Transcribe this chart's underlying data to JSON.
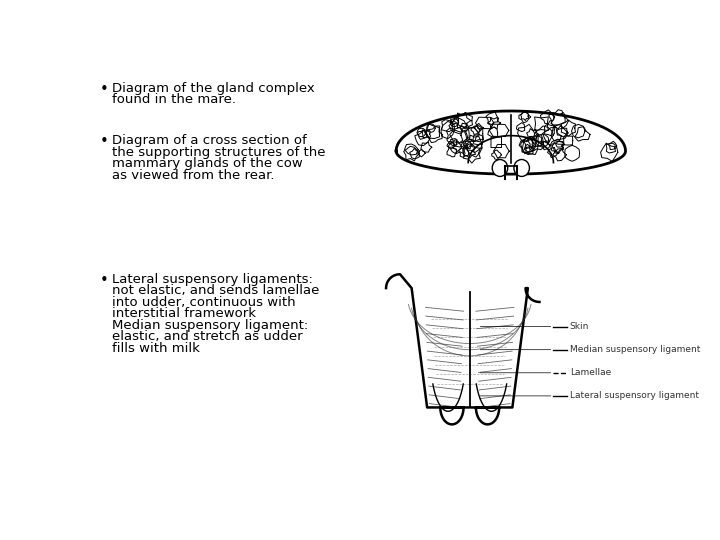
{
  "bg_color": "#ffffff",
  "text_color": "#000000",
  "bullet1_line1": "Diagram of the gland complex",
  "bullet1_line2": "found in the mare.",
  "bullet2_line1": "Diagram of a cross section of",
  "bullet2_line2": "the supporting structures of the",
  "bullet2_line3": "mammary glands of the cow",
  "bullet2_line4": "as viewed from the rear.",
  "bullet3_line1": "Lateral suspensory ligaments:",
  "bullet3_line2": "not elastic, and sends lamellae",
  "bullet3_line3": "into udder, continuous with",
  "bullet3_line4": "interstitial framework",
  "bullet3_line5": "Median suspensory ligament:",
  "bullet3_line6": "elastic, and stretch as udder",
  "bullet3_line7": "fills with milk",
  "legend_skin": "Skin",
  "legend_median": "Median suspensory ligament",
  "legend_lamellae": "Lamellae",
  "legend_lateral": "Lateral suspensory ligament",
  "font_size": 9.5,
  "font_family": "DejaVu Sans"
}
